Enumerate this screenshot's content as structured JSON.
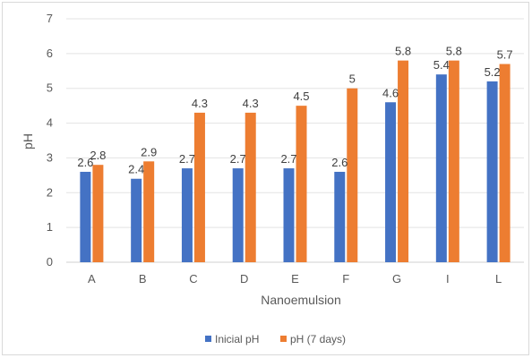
{
  "chart_data": {
    "type": "bar",
    "title": "",
    "xlabel": "Nanoemulsion",
    "ylabel": "pH",
    "categories": [
      "A",
      "B",
      "C",
      "D",
      "E",
      "F",
      "G",
      "I",
      "L"
    ],
    "ylim": [
      0,
      7
    ],
    "yticks": [
      0,
      1,
      2,
      3,
      4,
      5,
      6,
      7
    ],
    "grid": true,
    "legend_position": "bottom",
    "series": [
      {
        "name": "Inicial pH",
        "color": "#4472c4",
        "values": [
          2.6,
          2.4,
          2.7,
          2.7,
          2.7,
          2.6,
          4.6,
          5.4,
          5.2
        ],
        "labels": [
          "2.6",
          "2.4",
          "2.7",
          "2.7",
          "2.7",
          "2.6",
          "4.6",
          "5.4",
          "5.2"
        ]
      },
      {
        "name": "pH (7 days)",
        "color": "#ed7d31",
        "values": [
          2.8,
          2.9,
          4.3,
          4.3,
          4.5,
          5.0,
          5.8,
          5.8,
          5.7
        ],
        "labels": [
          "2.8",
          "2.9",
          "4.3",
          "4.3",
          "4.5",
          "5",
          "5.8",
          "5.8",
          "5.7"
        ]
      }
    ]
  }
}
